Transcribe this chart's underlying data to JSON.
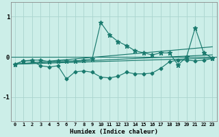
{
  "xlabel": "Humidex (Indice chaleur)",
  "bg_color": "#cceee8",
  "line_color": "#1a7a6e",
  "grid_color": "#aad4ce",
  "xlim": [
    -0.5,
    23.5
  ],
  "ylim": [
    -1.6,
    1.35
  ],
  "yticks": [
    -1,
    0,
    1
  ],
  "xticks": [
    0,
    1,
    2,
    3,
    4,
    5,
    6,
    7,
    8,
    9,
    10,
    11,
    12,
    13,
    14,
    15,
    16,
    17,
    18,
    19,
    20,
    21,
    22,
    23
  ],
  "series_lower": {
    "x": [
      0,
      1,
      2,
      3,
      4,
      5,
      6,
      7,
      8,
      9,
      10,
      11,
      12,
      13,
      14,
      15,
      16,
      17,
      18,
      19,
      20,
      21,
      22,
      23
    ],
    "y": [
      -0.18,
      -0.1,
      -0.1,
      -0.22,
      -0.25,
      -0.22,
      -0.55,
      -0.37,
      -0.35,
      -0.38,
      -0.5,
      -0.52,
      -0.48,
      -0.38,
      -0.42,
      -0.42,
      -0.4,
      -0.28,
      -0.12,
      -0.08,
      -0.08,
      -0.1,
      -0.08,
      -0.04
    ],
    "marker": "D"
  },
  "series_upper": {
    "x": [
      0,
      1,
      2,
      3,
      4,
      5,
      6,
      7,
      8,
      9,
      10,
      11,
      12,
      13,
      14,
      15,
      16,
      17,
      18,
      19,
      20,
      21,
      22,
      23
    ],
    "y": [
      -0.18,
      -0.1,
      -0.08,
      -0.08,
      -0.12,
      -0.1,
      -0.1,
      -0.1,
      -0.08,
      -0.05,
      0.85,
      0.55,
      0.38,
      0.28,
      0.15,
      0.1,
      0.05,
      0.1,
      0.1,
      -0.2,
      0.0,
      0.72,
      0.1,
      -0.03
    ],
    "marker": "*"
  },
  "lines": [
    {
      "x0": 0,
      "y0": -0.18,
      "x1": 23,
      "y1": 0.05
    },
    {
      "x0": 0,
      "y0": -0.18,
      "x1": 23,
      "y1": 0.25
    },
    {
      "x0": 0,
      "y0": -0.18,
      "x1": 23,
      "y1": -0.03
    }
  ]
}
